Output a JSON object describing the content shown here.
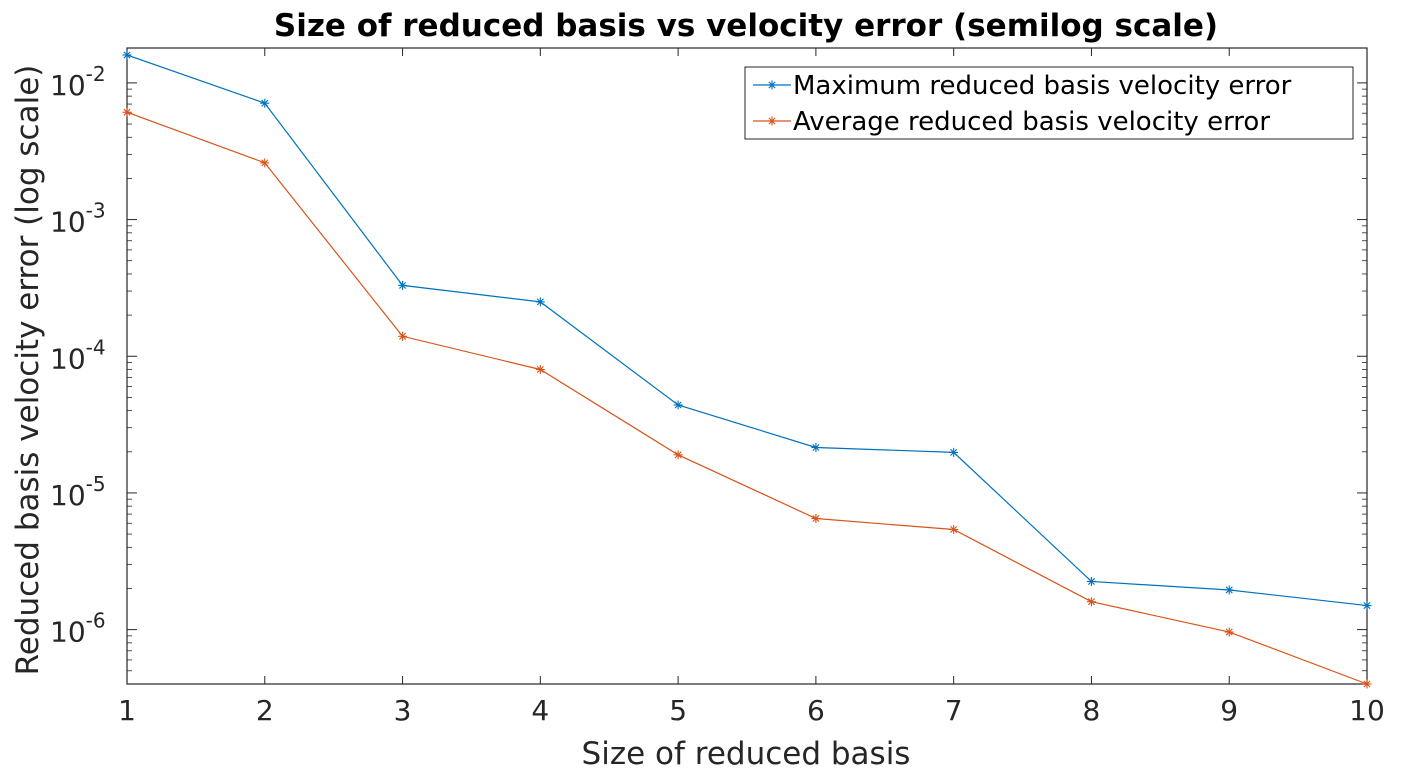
{
  "chart_data": {
    "type": "line",
    "title": "Size of reduced basis vs velocity error (semilog scale)",
    "xlabel": "Size of reduced basis",
    "ylabel": "Reduced basis velocity error (log scale)",
    "x": [
      1,
      2,
      3,
      4,
      5,
      6,
      7,
      8,
      9,
      10
    ],
    "xlim": [
      1,
      10
    ],
    "ylim": [
      4e-07,
      0.018
    ],
    "yscale": "log",
    "grid": false,
    "legend_position": "top-right",
    "x_ticks": [
      "1",
      "2",
      "3",
      "4",
      "5",
      "6",
      "7",
      "8",
      "9",
      "10"
    ],
    "y_ticks": [
      {
        "base": "10",
        "exp": "-2",
        "value": 0.01
      },
      {
        "base": "10",
        "exp": "-3",
        "value": 0.001
      },
      {
        "base": "10",
        "exp": "-4",
        "value": 0.0001
      },
      {
        "base": "10",
        "exp": "-5",
        "value": 1e-05
      },
      {
        "base": "10",
        "exp": "-6",
        "value": 1e-06
      }
    ],
    "series": [
      {
        "name": "Maximum reduced basis velocity error",
        "color": "#0072BD",
        "marker": "asterisk",
        "values": [
          0.016,
          0.0071,
          0.00033,
          0.00025,
          4.4e-05,
          2.15e-05,
          1.98e-05,
          2.25e-06,
          1.95e-06,
          1.5e-06
        ]
      },
      {
        "name": "Average reduced basis velocity error",
        "color": "#D95319",
        "marker": "asterisk",
        "values": [
          0.0061,
          0.0026,
          0.00014,
          8e-05,
          1.9e-05,
          6.5e-06,
          5.4e-06,
          1.6e-06,
          9.6e-07,
          4e-07
        ]
      }
    ]
  }
}
